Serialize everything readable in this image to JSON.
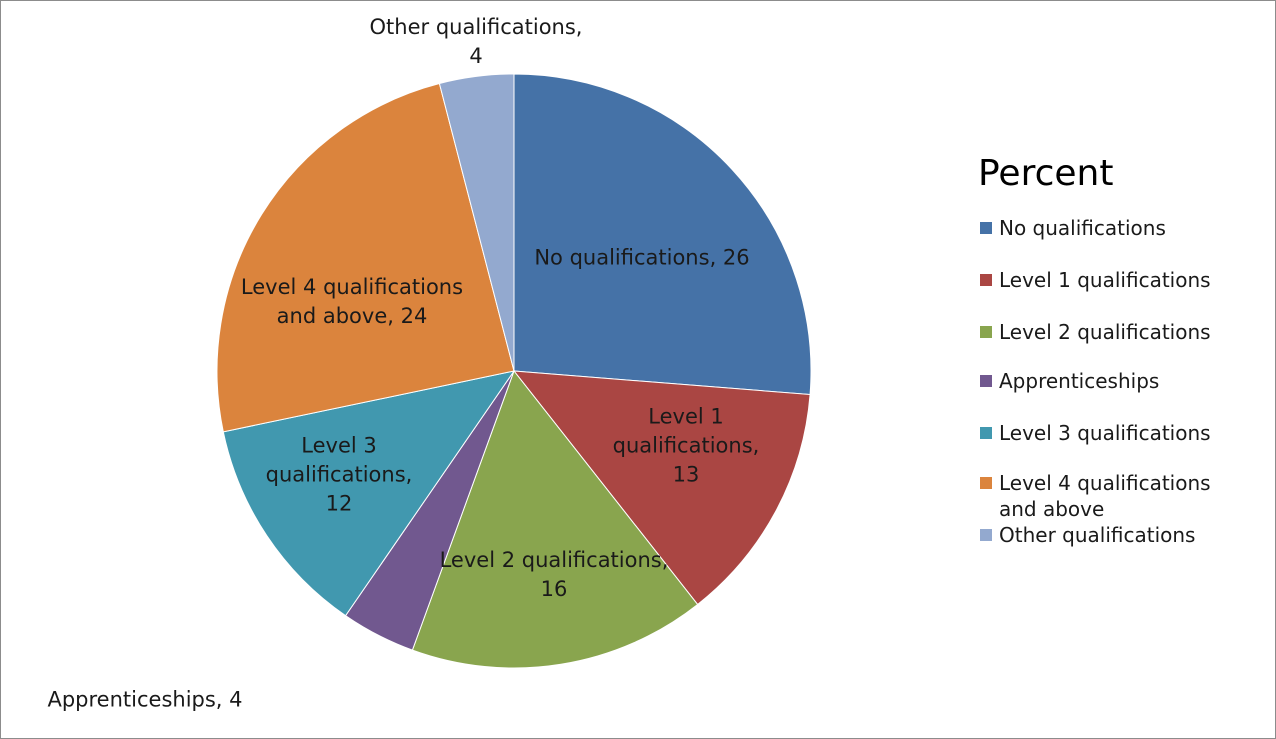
{
  "chart_data": {
    "type": "pie",
    "legend_title": "Percent",
    "categories": [
      "No qualifications",
      "Level 1 qualifications",
      "Level 2 qualifications",
      "Apprenticeships",
      "Level 3 qualifications",
      "Level 4 qualifications and above",
      "Other qualifications"
    ],
    "values": [
      26,
      13,
      16,
      4,
      12,
      24,
      4
    ],
    "value_labels": [
      "No qualifications, 26",
      "Level 1 qualifications, 13",
      "Level 2 qualifications, 16",
      "Apprenticeships, 4",
      "Level 3 qualifications, 12",
      "Level 4 qualifications and above, 24",
      "Other qualifications, 4"
    ],
    "colors": [
      "#4572a7",
      "#aa4643",
      "#89a54e",
      "#71588f",
      "#4198af",
      "#db843d",
      "#93a9cf"
    ],
    "legend": "right"
  }
}
